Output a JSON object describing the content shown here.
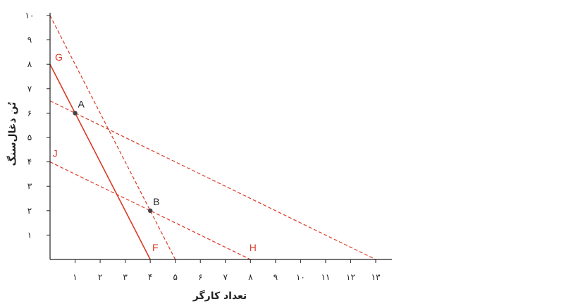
{
  "chart_data": {
    "type": "line",
    "xlabel": "تعداد کارگر",
    "ylabel": "تُن ذغال‌سنگ",
    "xlim": [
      0,
      13
    ],
    "ylim": [
      0,
      10
    ],
    "x_ticks": [
      {
        "value": 1,
        "label": "۱"
      },
      {
        "value": 2,
        "label": "۲"
      },
      {
        "value": 3,
        "label": "۳"
      },
      {
        "value": 4,
        "label": "۴"
      },
      {
        "value": 5,
        "label": "۵"
      },
      {
        "value": 6,
        "label": "۶"
      },
      {
        "value": 7,
        "label": "۷"
      },
      {
        "value": 8,
        "label": "۸"
      },
      {
        "value": 9,
        "label": "۹"
      },
      {
        "value": 10,
        "label": "۱۰"
      },
      {
        "value": 11,
        "label": "۱۱"
      },
      {
        "value": 12,
        "label": "۱۲"
      },
      {
        "value": 13,
        "label": "۱۳"
      }
    ],
    "y_ticks": [
      {
        "value": 1,
        "label": "۱"
      },
      {
        "value": 2,
        "label": "۲"
      },
      {
        "value": 3,
        "label": "۳"
      },
      {
        "value": 4,
        "label": "۴"
      },
      {
        "value": 5,
        "label": "۵"
      },
      {
        "value": 6,
        "label": "۶"
      },
      {
        "value": 7,
        "label": "۷"
      },
      {
        "value": 8,
        "label": "۸"
      },
      {
        "value": 9,
        "label": "۹"
      },
      {
        "value": 10,
        "label": "۱۰"
      }
    ],
    "lines": [
      {
        "id": "GF",
        "style": "solid",
        "points": [
          [
            0,
            8
          ],
          [
            4,
            0
          ]
        ]
      },
      {
        "id": "steep-dashed",
        "style": "dashed",
        "points": [
          [
            0,
            10
          ],
          [
            5,
            0
          ]
        ]
      },
      {
        "id": "upper-dashed",
        "style": "dashed",
        "points": [
          [
            0,
            6.5
          ],
          [
            13,
            0
          ]
        ]
      },
      {
        "id": "JH",
        "style": "dashed",
        "points": [
          [
            0,
            4
          ],
          [
            8,
            0
          ]
        ]
      }
    ],
    "line_labels": [
      {
        "text": "G",
        "x": 0.35,
        "y": 8.15
      },
      {
        "text": "F",
        "x": 4.2,
        "y": 0.35
      },
      {
        "text": "J",
        "x": 0.2,
        "y": 4.2
      },
      {
        "text": "H",
        "x": 8.1,
        "y": 0.35
      }
    ],
    "points": [
      {
        "label": "A",
        "x": 1,
        "y": 6
      },
      {
        "label": "B",
        "x": 4,
        "y": 2
      }
    ],
    "colors": {
      "line": "#d93a26",
      "axis": "#222222",
      "point": "#444444"
    }
  }
}
